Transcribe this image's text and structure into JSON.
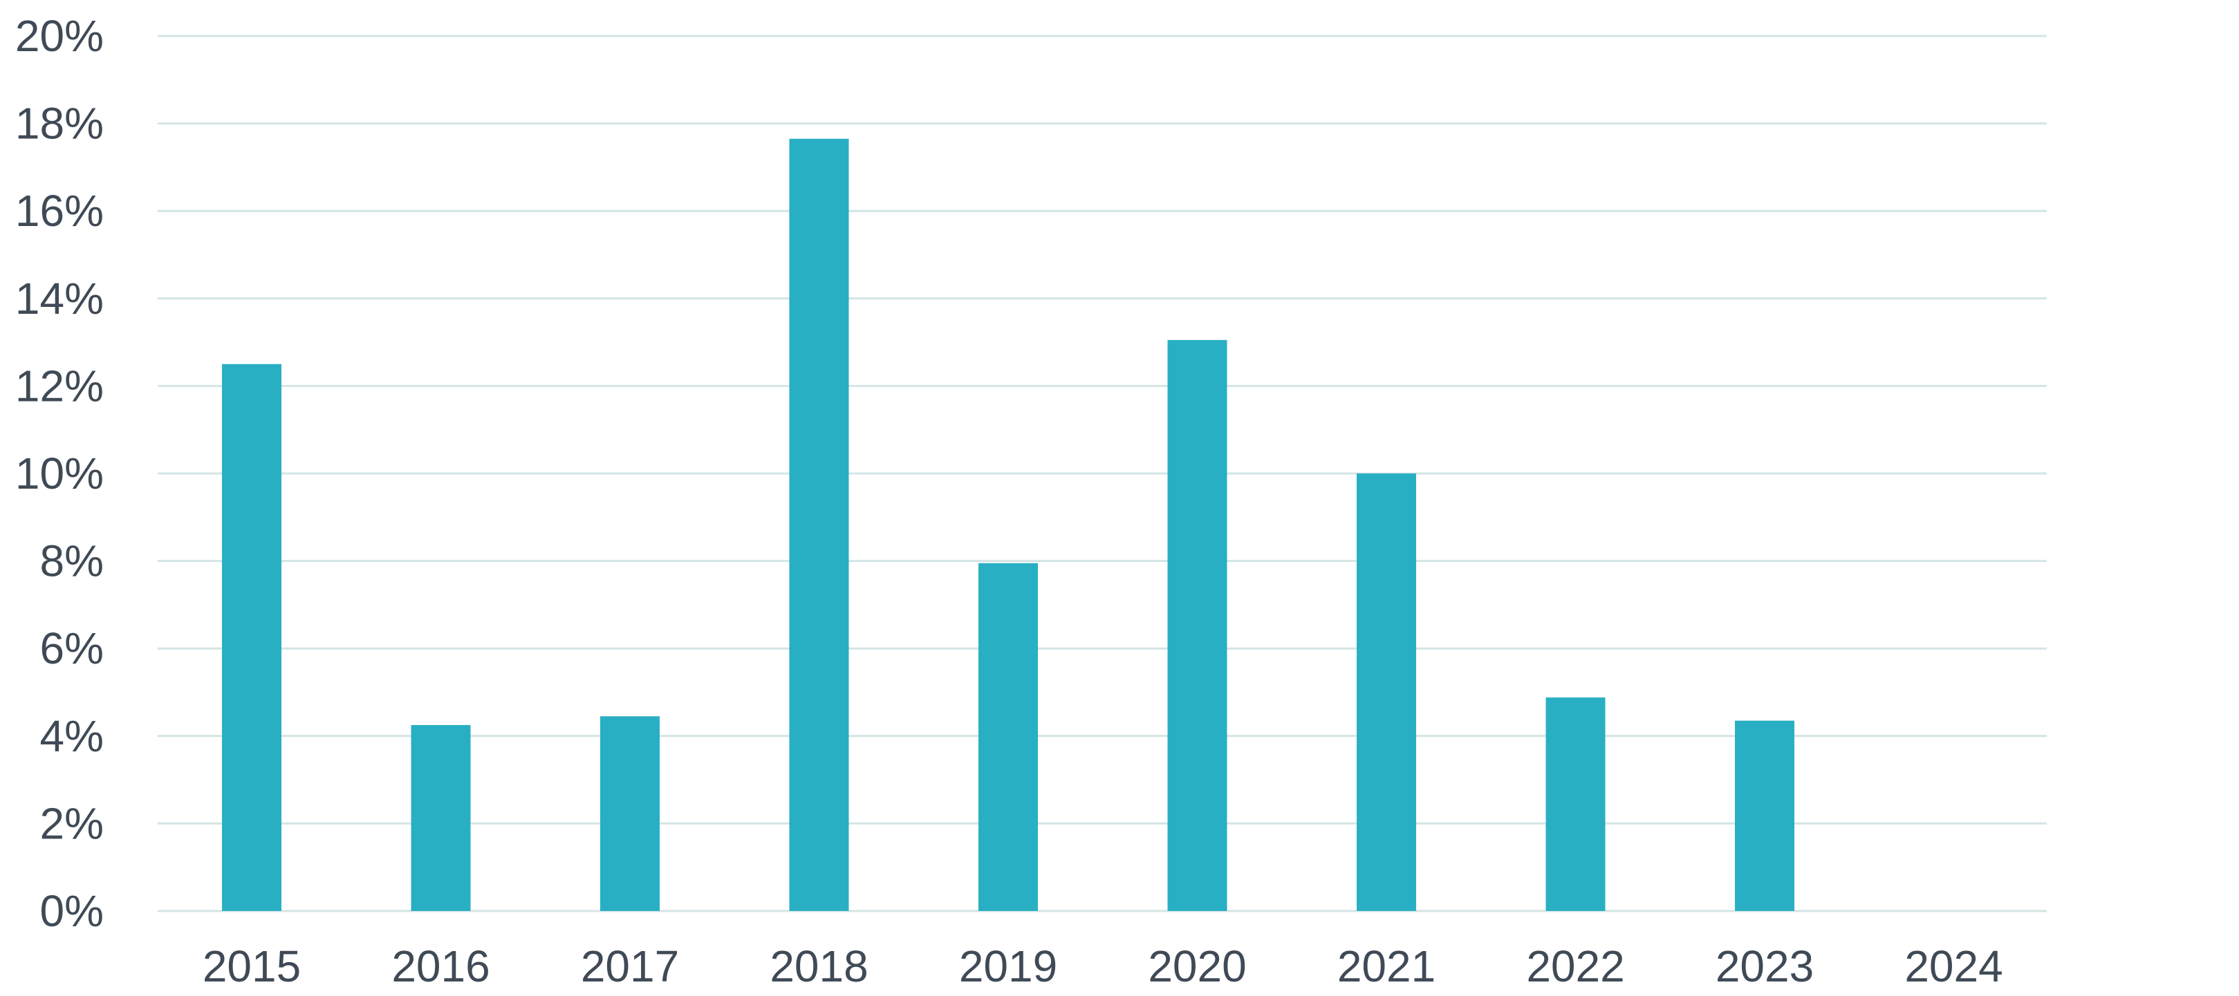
{
  "chart_data": {
    "type": "bar",
    "title": "",
    "xlabel": "",
    "ylabel": "",
    "categories": [
      "2015",
      "2016",
      "2017",
      "2018",
      "2019",
      "2020",
      "2021",
      "2022",
      "2023",
      "2024"
    ],
    "values": [
      12.5,
      4.25,
      4.45,
      17.65,
      7.95,
      13.05,
      10.0,
      4.88,
      4.35,
      null
    ],
    "ylim": [
      0,
      20
    ],
    "yticks": [
      0,
      2,
      4,
      6,
      8,
      10,
      12,
      14,
      16,
      18,
      20
    ],
    "ytick_labels": [
      "0%",
      "2%",
      "4%",
      "6%",
      "8%",
      "10%",
      "12%",
      "14%",
      "16%",
      "18%",
      "20%"
    ],
    "grid": true,
    "legend": "none",
    "colors": {
      "bar": "#29afc3",
      "grid": "#d4e4e4",
      "text": "#3f4a56"
    }
  }
}
